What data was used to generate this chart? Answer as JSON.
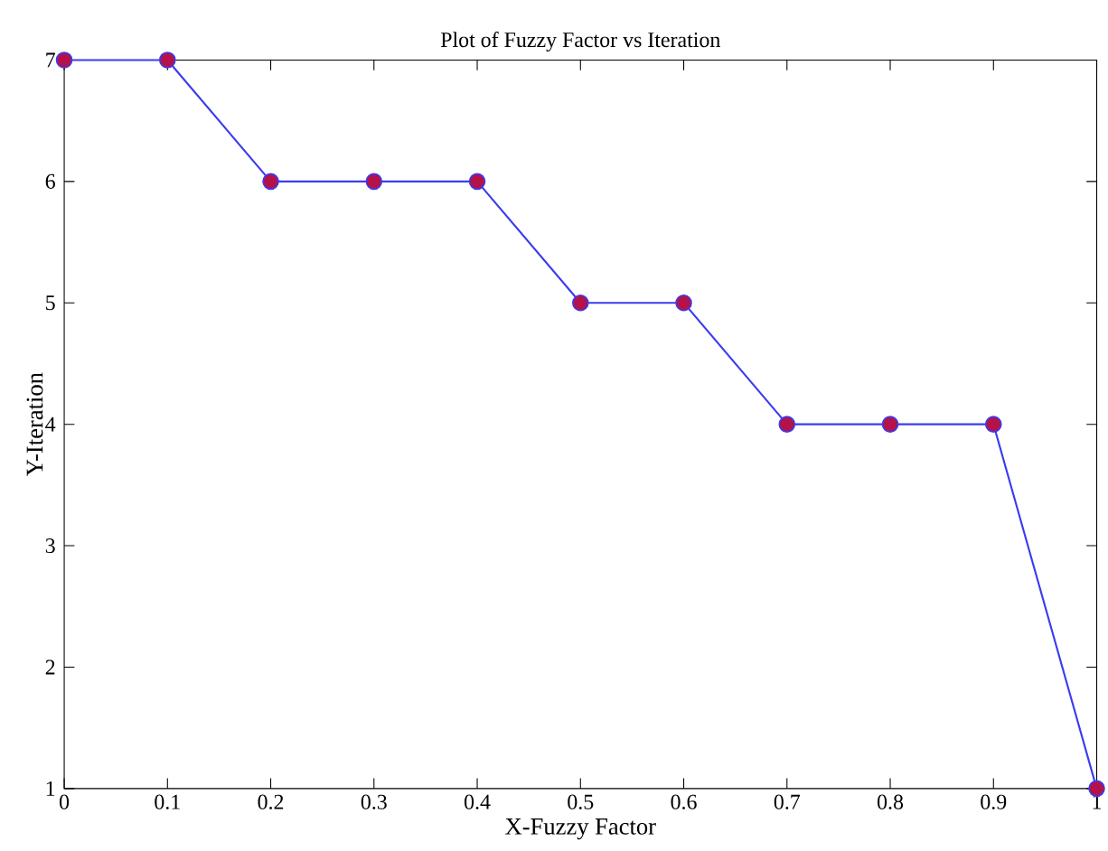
{
  "chart_data": {
    "type": "line",
    "title": "Plot of Fuzzy Factor vs Iteration",
    "xlabel": "X-Fuzzy Factor",
    "ylabel": "Y-Iteration",
    "x": [
      0,
      0.1,
      0.2,
      0.3,
      0.4,
      0.5,
      0.6,
      0.7,
      0.8,
      0.9,
      1
    ],
    "series": [
      {
        "color": "#3b3bf0",
        "values": [
          7,
          7,
          6,
          6,
          6,
          5,
          5,
          4,
          4,
          4,
          1
        ],
        "colors": [
          "#b3124a",
          "#b3124a",
          "#b3124a",
          "#b3124a",
          "#b3124a",
          "#b3124a",
          "#b3124a",
          "#b3124a",
          "#b3124a",
          "#b3124a",
          "#b3124a"
        ]
      }
    ],
    "xlim": [
      0,
      1
    ],
    "ylim": [
      1,
      7
    ],
    "xticks": [
      0,
      0.1,
      0.2,
      0.3,
      0.4,
      0.5,
      0.6,
      0.7,
      0.8,
      0.9,
      1
    ],
    "yticks": [
      1,
      2,
      3,
      4,
      5,
      6,
      7
    ],
    "marker": "circle",
    "line_style": "solid"
  }
}
